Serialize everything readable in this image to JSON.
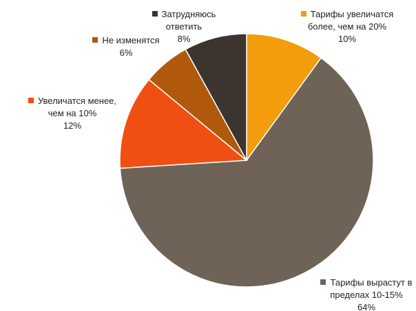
{
  "chart_data": {
    "type": "pie",
    "categories": [
      "Тарифы увеличатся более, чем на 20%",
      "Тарифы вырастут в пределах 10-15%",
      "Увеличатся менее, чем на 10%",
      "Не изменятся",
      "Затрудняюсь ответить"
    ],
    "values": [
      10,
      64,
      12,
      6,
      8
    ],
    "value_labels": [
      "10%",
      "64%",
      "12%",
      "6%",
      "8%"
    ],
    "colors": [
      "#f39c0c",
      "#6e6356",
      "#f04f12",
      "#b0590c",
      "#3b342f"
    ]
  }
}
